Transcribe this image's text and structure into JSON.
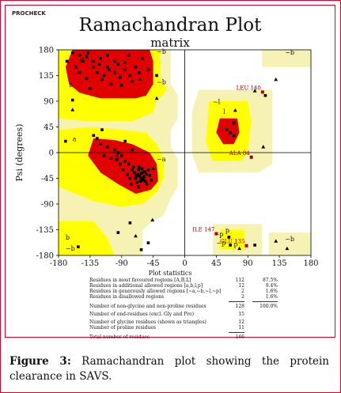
{
  "header": {
    "program": "PROCHECK",
    "title": "Ramachandran Plot",
    "subtitle": "matrix"
  },
  "chart_data": {
    "type": "scatter",
    "title": "Ramachandran Plot",
    "subtitle": "matrix",
    "xlabel": "Phi (degrees)",
    "ylabel": "Psi (degrees)",
    "xlim": [
      -180,
      180
    ],
    "ylim": [
      -180,
      180
    ],
    "xticks": [
      "-180",
      "-135",
      "-90",
      "-45",
      "0",
      "45",
      "90",
      "135",
      "180"
    ],
    "yticks": [
      "180",
      "135",
      "90",
      "45",
      "0",
      "-45",
      "-90",
      "-135",
      "-180"
    ],
    "colors": {
      "most_favoured": "#e00000",
      "additional": "#ffff00",
      "generous": "#f6f2b4",
      "disallowed": "#ffffff",
      "points": "#000000",
      "outlier_marker": "#b00000",
      "label_text": "#b00000"
    },
    "region_labels": [
      {
        "text": "B",
        "x": -150,
        "y": 158
      },
      {
        "text": "b",
        "x": -165,
        "y": 115
      },
      {
        "text": "~b",
        "x": -40,
        "y": 173
      },
      {
        "text": "~b",
        "x": -40,
        "y": 120
      },
      {
        "text": "a",
        "x": -160,
        "y": 20
      },
      {
        "text": "A",
        "x": -100,
        "y": -10
      },
      {
        "text": "~a",
        "x": -40,
        "y": -15
      },
      {
        "text": "~l",
        "x": 40,
        "y": 85
      },
      {
        "text": "l",
        "x": 55,
        "y": 68
      },
      {
        "text": "L",
        "x": 52,
        "y": 38
      },
      {
        "text": "~b",
        "x": 143,
        "y": 172
      },
      {
        "text": "~b",
        "x": 143,
        "y": -155
      },
      {
        "text": "~p",
        "x": 42,
        "y": -147
      },
      {
        "text": "p",
        "x": 58,
        "y": -140
      },
      {
        "text": "~p",
        "x": 45,
        "y": -162
      },
      {
        "text": "p",
        "x": 70,
        "y": -164
      },
      {
        "text": "b",
        "x": -170,
        "y": -152
      },
      {
        "text": "~b",
        "x": -170,
        "y": -172
      }
    ],
    "points": [
      {
        "x": -160,
        "y": 175
      },
      {
        "x": -150,
        "y": 170
      },
      {
        "x": -140,
        "y": 168
      },
      {
        "x": -130,
        "y": 160
      },
      {
        "x": -120,
        "y": 165
      },
      {
        "x": -110,
        "y": 150
      },
      {
        "x": -100,
        "y": 140
      },
      {
        "x": -95,
        "y": 155
      },
      {
        "x": -85,
        "y": 145
      },
      {
        "x": -78,
        "y": 135
      },
      {
        "x": -70,
        "y": 150
      },
      {
        "x": -65,
        "y": 140
      },
      {
        "x": -125,
        "y": 140
      },
      {
        "x": -140,
        "y": 130
      },
      {
        "x": -118,
        "y": 128
      },
      {
        "x": -105,
        "y": 120
      },
      {
        "x": -90,
        "y": 118
      },
      {
        "x": -135,
        "y": 112
      },
      {
        "x": -150,
        "y": 140
      },
      {
        "x": -110,
        "y": 170
      },
      {
        "x": -80,
        "y": 170
      },
      {
        "x": -60,
        "y": 165
      },
      {
        "x": -155,
        "y": 150
      },
      {
        "x": -130,
        "y": 150
      },
      {
        "x": -145,
        "y": 160
      },
      {
        "x": -122,
        "y": 155
      },
      {
        "x": -100,
        "y": 160
      },
      {
        "x": -92,
        "y": 132
      },
      {
        "x": -75,
        "y": 125
      },
      {
        "x": -115,
        "y": 135
      },
      {
        "x": -108,
        "y": 145
      },
      {
        "x": -138,
        "y": 175
      },
      {
        "x": -168,
        "y": 160
      },
      {
        "x": -85,
        "y": 158
      },
      {
        "x": -64,
        "y": 128
      },
      {
        "x": -52,
        "y": 145
      },
      {
        "x": -40,
        "y": 135
      },
      {
        "x": -160,
        "y": 92
      },
      {
        "x": -170,
        "y": 20
      },
      {
        "x": -65,
        "y": -40
      },
      {
        "x": -62,
        "y": -45
      },
      {
        "x": -60,
        "y": -35
      },
      {
        "x": -67,
        "y": -38
      },
      {
        "x": -58,
        "y": -42
      },
      {
        "x": -63,
        "y": -50
      },
      {
        "x": -70,
        "y": -45
      },
      {
        "x": -66,
        "y": -30
      },
      {
        "x": -55,
        "y": -38
      },
      {
        "x": -61,
        "y": -28
      },
      {
        "x": -72,
        "y": -35
      },
      {
        "x": -60,
        "y": -48
      },
      {
        "x": -64,
        "y": -42
      },
      {
        "x": -57,
        "y": -33
      },
      {
        "x": -68,
        "y": -52
      },
      {
        "x": -62,
        "y": -36
      },
      {
        "x": -65,
        "y": -25
      },
      {
        "x": -59,
        "y": -45
      },
      {
        "x": -69,
        "y": -40
      },
      {
        "x": -56,
        "y": -50
      },
      {
        "x": -75,
        "y": -30
      },
      {
        "x": -80,
        "y": -20
      },
      {
        "x": -85,
        "y": -15
      },
      {
        "x": -90,
        "y": -5
      },
      {
        "x": -95,
        "y": 0
      },
      {
        "x": -100,
        "y": 5
      },
      {
        "x": -110,
        "y": 10
      },
      {
        "x": -120,
        "y": 15
      },
      {
        "x": -105,
        "y": -10
      },
      {
        "x": -88,
        "y": -30
      },
      {
        "x": -78,
        "y": -45
      },
      {
        "x": -92,
        "y": -20
      },
      {
        "x": -115,
        "y": -5
      },
      {
        "x": -125,
        "y": 25
      },
      {
        "x": -130,
        "y": 30
      },
      {
        "x": -97,
        "y": -12
      },
      {
        "x": -73,
        "y": -25
      },
      {
        "x": -82,
        "y": -38
      },
      {
        "x": -50,
        "y": -40
      },
      {
        "x": -52,
        "y": -30
      },
      {
        "x": -48,
        "y": -48
      },
      {
        "x": -54,
        "y": -55
      },
      {
        "x": -66,
        "y": -60
      },
      {
        "x": -76,
        "y": -55
      },
      {
        "x": -118,
        "y": 40
      },
      {
        "x": -85,
        "y": 20
      },
      {
        "x": -75,
        "y": 5
      },
      {
        "x": -78,
        "y": -123
      },
      {
        "x": -95,
        "y": -140
      },
      {
        "x": -52,
        "y": -158
      },
      {
        "x": -62,
        "y": -170
      },
      {
        "x": -152,
        "y": -165
      },
      {
        "x": 60,
        "y": 40
      },
      {
        "x": 65,
        "y": 35
      },
      {
        "x": 70,
        "y": 30
      },
      {
        "x": 70,
        "y": 52
      },
      {
        "x": 115,
        "y": 100
      },
      {
        "x": 63,
        "y": -148
      },
      {
        "x": 65,
        "y": -162
      },
      {
        "x": 100,
        "y": -162
      }
    ],
    "glycine_triangles": [
      {
        "x": -160,
        "y": 75
      },
      {
        "x": 130,
        "y": 128
      },
      {
        "x": 112,
        "y": 10
      },
      {
        "x": 78,
        "y": -168
      },
      {
        "x": 100,
        "y": 108
      },
      {
        "x": 130,
        "y": -155
      },
      {
        "x": -46,
        "y": -118
      },
      {
        "x": -70,
        "y": -146
      },
      {
        "x": -45,
        "y": -28
      },
      {
        "x": -40,
        "y": 95
      },
      {
        "x": 72,
        "y": 74
      },
      {
        "x": 146,
        "y": -168
      }
    ],
    "outliers": [
      {
        "label": "LEU 140",
        "x": 111,
        "y": 106
      },
      {
        "label": "ALA 84",
        "x": 95,
        "y": -8
      },
      {
        "label": "ILE 147",
        "x": 45,
        "y": -142
      },
      {
        "label": "GLU 135",
        "x": 88,
        "y": -163
      }
    ]
  },
  "statistics": {
    "title": "Plot statistics",
    "rows": [
      {
        "label": "Residues in most favoured regions  [A,B,L]",
        "count": "112",
        "percent": "87.5%"
      },
      {
        "label": "Residues in additional allowed regions  [a,b,l,p]",
        "count": "12",
        "percent": "9.4%"
      },
      {
        "label": "Residues in generously allowed regions  [~a,~b,~l,~p]",
        "count": "2",
        "percent": "1.6%"
      },
      {
        "label": "Residues in disallowed regions",
        "count": "2",
        "percent": "1.6%"
      },
      {
        "label": "Number of non-glycine and non-proline residues",
        "count": "128",
        "percent": "100.0%"
      },
      {
        "label": "Number of end-residues (excl. Gly and Pro)",
        "count": "15",
        "percent": ""
      },
      {
        "label": "Number of glycine residues (shown as triangles)",
        "count": "12",
        "percent": ""
      },
      {
        "label": "Number of proline residues",
        "count": "11",
        "percent": ""
      },
      {
        "label": "Total number of residues",
        "count": "166",
        "percent": ""
      }
    ]
  },
  "caption": {
    "label": "Figure 3:",
    "text": " Ramachandran plot showing the protein clearance in SAVS."
  }
}
